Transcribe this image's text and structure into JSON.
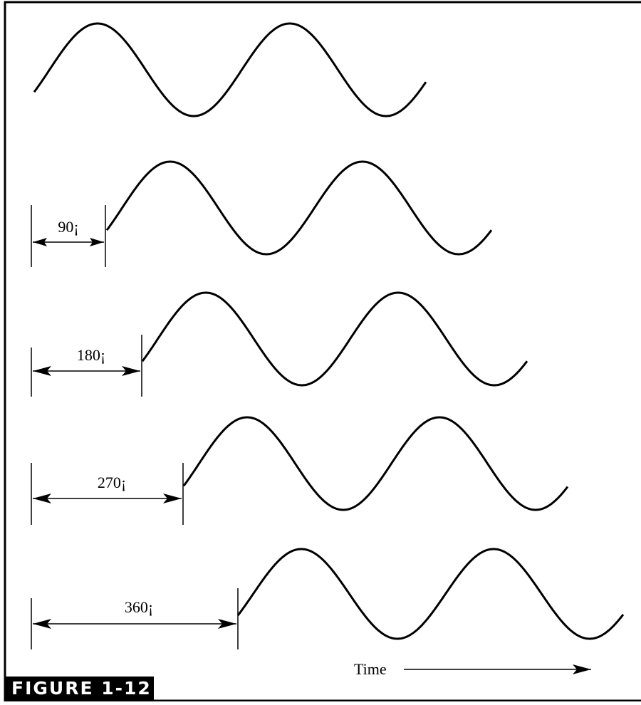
{
  "figure_label": "FIGURE 1-12",
  "time_label": "Time",
  "colors": {
    "stroke": "#000000",
    "background": "#ffffff"
  },
  "waves": [
    {
      "id": "reference",
      "phase_shift_label": null
    },
    {
      "id": "shift-90",
      "phase_shift_label": "90¡"
    },
    {
      "id": "shift-180",
      "phase_shift_label": "180¡"
    },
    {
      "id": "shift-270",
      "phase_shift_label": "270¡"
    },
    {
      "id": "shift-360",
      "phase_shift_label": "360¡"
    }
  ]
}
